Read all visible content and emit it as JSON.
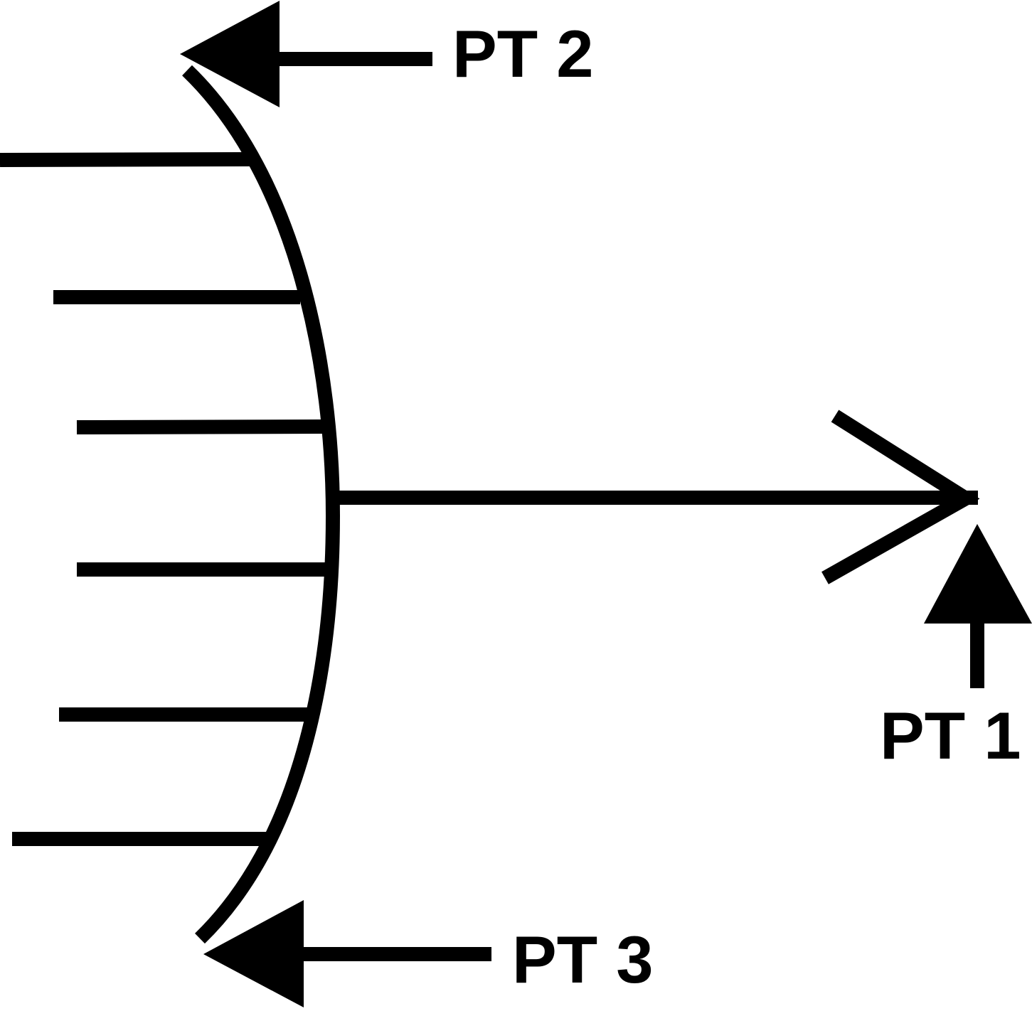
{
  "labels": {
    "pt1": "PT 1",
    "pt2": "PT 2",
    "pt3": "PT 3"
  },
  "colors": {
    "ink": "#000000",
    "background": "#ffffff"
  }
}
